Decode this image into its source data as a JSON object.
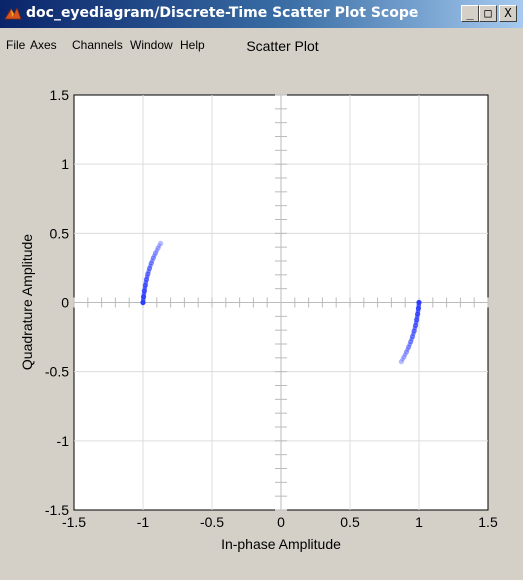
{
  "window": {
    "title": "doc_eyediagram/Discrete-Time Scatter Plot Scope",
    "controls": {
      "minimize": "_",
      "maximize": "□",
      "close": "X"
    }
  },
  "menu": {
    "items": [
      "File",
      "Axes",
      "Channels",
      "Window",
      "Help"
    ]
  },
  "chart_data": {
    "type": "scatter",
    "title": "Scatter Plot",
    "xlabel": "In-phase Amplitude",
    "ylabel": "Quadrature Amplitude",
    "xlim": [
      -1.5,
      1.5
    ],
    "ylim": [
      -1.5,
      1.5
    ],
    "xticks": [
      "-1.5",
      "-1",
      "-0.5",
      "0",
      "0.5",
      "1",
      "1.5"
    ],
    "yticks": [
      "-1.5",
      "-1",
      "-0.5",
      "0",
      "0.5",
      "1",
      "1.5"
    ],
    "grid": true,
    "series": [
      {
        "color": "#2b3bff",
        "x": [
          -1.0,
          -0.996,
          -0.99,
          -0.983,
          -0.975,
          -0.965,
          -0.953,
          -0.94,
          -0.925,
          -0.909,
          -0.891,
          -0.872
        ],
        "y": [
          0.0,
          0.042,
          0.084,
          0.125,
          0.166,
          0.206,
          0.246,
          0.284,
          0.322,
          0.358,
          0.394,
          0.428
        ]
      },
      {
        "color": "#2b3bff",
        "x": [
          1.0,
          0.996,
          0.99,
          0.983,
          0.975,
          0.965,
          0.953,
          0.94,
          0.925,
          0.909,
          0.891,
          0.872
        ],
        "y": [
          0.0,
          -0.042,
          -0.084,
          -0.125,
          -0.166,
          -0.206,
          -0.246,
          -0.284,
          -0.322,
          -0.358,
          -0.394,
          -0.428
        ]
      }
    ]
  }
}
